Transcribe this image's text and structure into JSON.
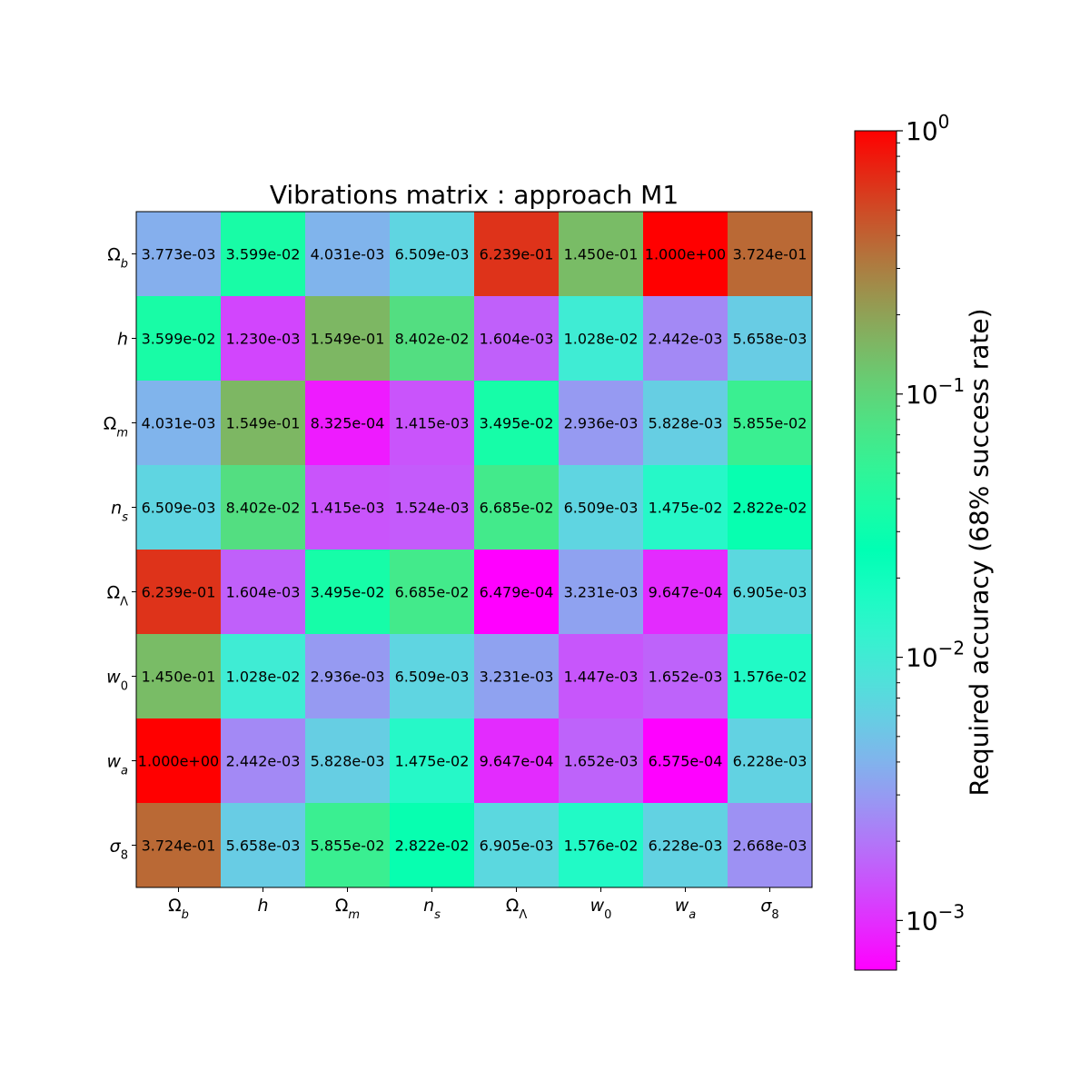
{
  "chart_data": {
    "type": "heatmap",
    "title": "Vibrations matrix : approach M1",
    "parameters": [
      {
        "base": "Ω",
        "sub": "b",
        "italic": false
      },
      {
        "base": "h",
        "sub": "",
        "italic": true
      },
      {
        "base": "Ω",
        "sub": "m",
        "italic": false
      },
      {
        "base": "n",
        "sub": "s",
        "italic": true
      },
      {
        "base": "Ω",
        "sub": "Λ",
        "italic": false
      },
      {
        "base": "w",
        "sub": "0",
        "italic": true
      },
      {
        "base": "w",
        "sub": "a",
        "italic": true
      },
      {
        "base": "σ",
        "sub": "8",
        "italic": true
      }
    ],
    "values": [
      [
        "3.773e-03",
        "3.599e-02",
        "4.031e-03",
        "6.509e-03",
        "6.239e-01",
        "1.450e-01",
        "1.000e+00",
        "3.724e-01"
      ],
      [
        "3.599e-02",
        "1.230e-03",
        "1.549e-01",
        "8.402e-02",
        "1.604e-03",
        "1.028e-02",
        "2.442e-03",
        "5.658e-03"
      ],
      [
        "4.031e-03",
        "1.549e-01",
        "8.325e-04",
        "1.415e-03",
        "3.495e-02",
        "2.936e-03",
        "5.828e-03",
        "5.855e-02"
      ],
      [
        "6.509e-03",
        "8.402e-02",
        "1.415e-03",
        "1.524e-03",
        "6.685e-02",
        "6.509e-03",
        "1.475e-02",
        "2.822e-02"
      ],
      [
        "6.239e-01",
        "1.604e-03",
        "3.495e-02",
        "6.685e-02",
        "6.479e-04",
        "3.231e-03",
        "9.647e-04",
        "6.905e-03"
      ],
      [
        "1.450e-01",
        "1.028e-02",
        "2.936e-03",
        "6.509e-03",
        "3.231e-03",
        "1.447e-03",
        "1.652e-03",
        "1.576e-02"
      ],
      [
        "1.000e+00",
        "2.442e-03",
        "5.828e-03",
        "1.475e-02",
        "9.647e-04",
        "1.652e-03",
        "6.575e-04",
        "6.228e-03"
      ],
      [
        "3.724e-01",
        "5.658e-03",
        "5.855e-02",
        "2.822e-02",
        "6.905e-03",
        "1.576e-02",
        "6.228e-03",
        "2.668e-03"
      ]
    ],
    "colorbar": {
      "label": "Required accuracy (68% success rate)",
      "scale": "log",
      "colormap": "rainbow",
      "range": [
        0.0006479,
        1.0
      ],
      "ticks": [
        {
          "base": "10",
          "exp": "0",
          "value": 1
        },
        {
          "base": "10",
          "exp": "−1",
          "value": 0.1
        },
        {
          "base": "10",
          "exp": "−2",
          "value": 0.01
        },
        {
          "base": "10",
          "exp": "−3",
          "value": 0.001
        }
      ]
    }
  }
}
